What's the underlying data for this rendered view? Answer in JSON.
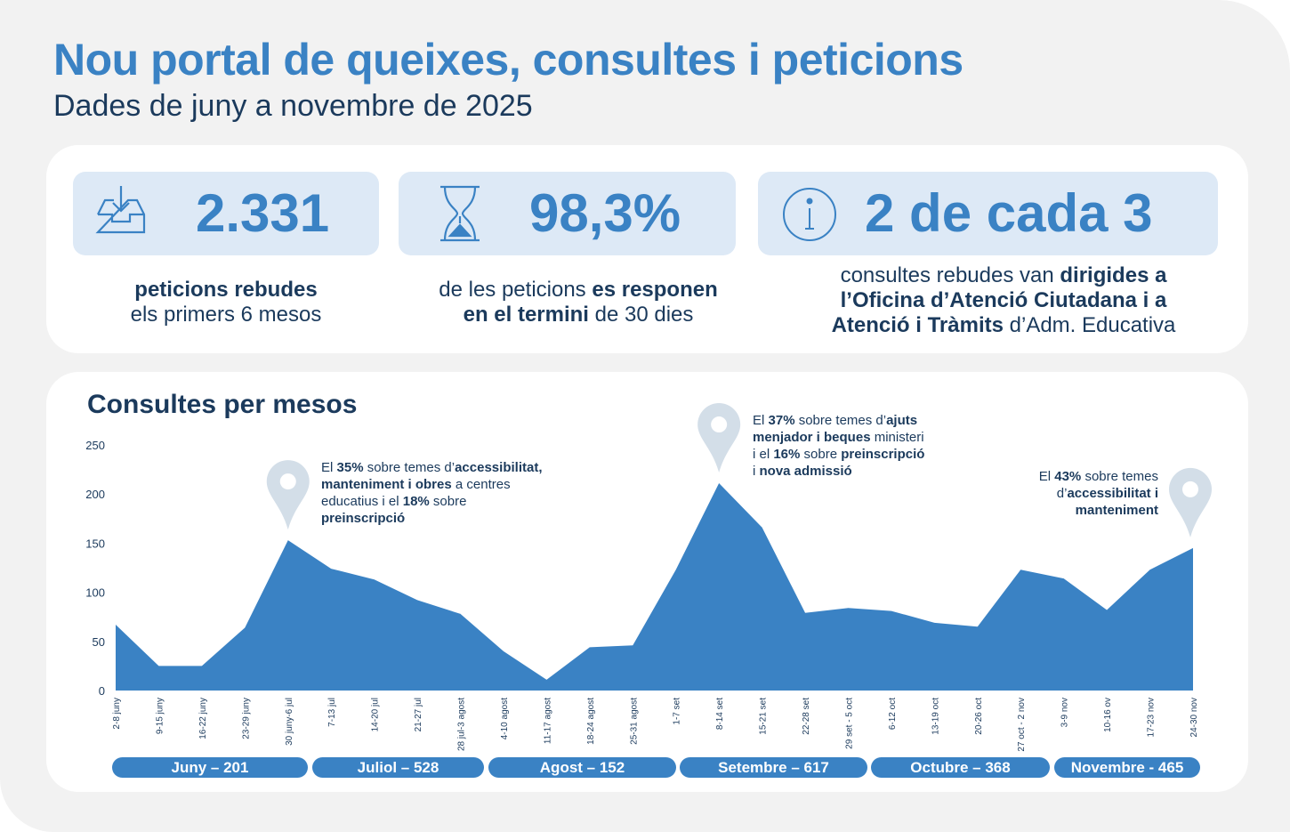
{
  "header": {
    "title": "Nou portal de queixes, consultes i peticions",
    "subtitle": "Dades de juny a novembre de 2025"
  },
  "stats": [
    {
      "icon": "inbox-download-icon",
      "value": "2.331",
      "desc": [
        [
          {
            "t": "peticions rebudes",
            "b": true
          }
        ],
        [
          {
            "t": "els primers 6 mesos",
            "b": false
          }
        ]
      ]
    },
    {
      "icon": "hourglass-icon",
      "value": "98,3%",
      "desc": [
        [
          {
            "t": "de les peticions ",
            "b": false
          },
          {
            "t": "es responen",
            "b": true
          }
        ],
        [
          {
            "t": "en el termini",
            "b": true
          },
          {
            "t": " de 30 dies",
            "b": false
          }
        ]
      ]
    },
    {
      "icon": "info-icon",
      "value": "2 de cada 3",
      "desc": [
        [
          {
            "t": "consultes rebudes van ",
            "b": false
          },
          {
            "t": "dirigides a",
            "b": true
          }
        ],
        [
          {
            "t": "l’Oficina d’Atenció Ciutadana i a",
            "b": true
          }
        ],
        [
          {
            "t": "Atenció i Tràmits",
            "b": true
          },
          {
            "t": " d’Adm. Educativa",
            "b": false
          }
        ]
      ]
    }
  ],
  "chart_data": {
    "type": "area",
    "title": "Consultes per mesos",
    "color": "#3a82c4",
    "ylim": [
      0,
      250
    ],
    "yticks": [
      0,
      50,
      100,
      150,
      200,
      250
    ],
    "categories": [
      "2-8 juny",
      "9-15 juny",
      "16-22 juny",
      "23-29 juny",
      "30 juny-6 jul",
      "7-13 jul",
      "14-20 jul",
      "21-27 jul",
      "28 jul-3 agost",
      "4-10 agost",
      "11-17 agost",
      "18-24 agost",
      "25-31 agost",
      "1-7 set",
      "8-14 set",
      "15-21 set",
      "22-28 set",
      "29 set - 5 oct",
      "6-12 oct",
      "13-19 oct",
      "20-26 oct",
      "27 oct - 2 nov",
      "3-9 nov",
      "10-16 ov",
      "17-23 nov",
      "24-30 nov"
    ],
    "values": [
      67,
      25,
      25,
      64,
      153,
      124,
      113,
      92,
      78,
      40,
      11,
      44,
      46,
      123,
      211,
      166,
      79,
      84,
      81,
      69,
      65,
      123,
      114,
      82,
      123,
      145
    ],
    "months": [
      {
        "label": "Juny – 201"
      },
      {
        "label": "Juliol – 528"
      },
      {
        "label": "Agost – 152"
      },
      {
        "label": "Setembre – 617"
      },
      {
        "label": "Octubre – 368"
      },
      {
        "label": "Novembre - 465"
      }
    ],
    "annotations": [
      {
        "point": "30 juny-6 jul",
        "lines": [
          [
            {
              "t": "El ",
              "b": false
            },
            {
              "t": "35%",
              "b": true
            },
            {
              "t": " sobre temes d’",
              "b": false
            },
            {
              "t": "accessibilitat,",
              "b": true
            }
          ],
          [
            {
              "t": "manteniment i obres",
              "b": true
            },
            {
              "t": " a centres",
              "b": false
            }
          ],
          [
            {
              "t": "educatius i el ",
              "b": false
            },
            {
              "t": "18%",
              "b": true
            },
            {
              "t": " sobre",
              "b": false
            }
          ],
          [
            {
              "t": "preinscripció",
              "b": true
            }
          ]
        ]
      },
      {
        "point": "8-14 set",
        "lines": [
          [
            {
              "t": "El ",
              "b": false
            },
            {
              "t": "37%",
              "b": true
            },
            {
              "t": " sobre temes d’",
              "b": false
            },
            {
              "t": "ajuts",
              "b": true
            }
          ],
          [
            {
              "t": "menjador i beques",
              "b": true
            },
            {
              "t": " ministeri",
              "b": false
            }
          ],
          [
            {
              "t": "i el ",
              "b": false
            },
            {
              "t": "16%",
              "b": true
            },
            {
              "t": " sobre ",
              "b": false
            },
            {
              "t": "preinscripció",
              "b": true
            }
          ],
          [
            {
              "t": "i ",
              "b": false
            },
            {
              "t": "nova admissió",
              "b": true
            }
          ]
        ]
      },
      {
        "point": "24-30 nov",
        "lines": [
          [
            {
              "t": "El ",
              "b": false
            },
            {
              "t": "43%",
              "b": true
            },
            {
              "t": " sobre temes",
              "b": false
            }
          ],
          [
            {
              "t": "d’",
              "b": false
            },
            {
              "t": "accessibilitat i",
              "b": true
            }
          ],
          [
            {
              "t": "manteniment",
              "b": true
            }
          ]
        ]
      }
    ]
  }
}
